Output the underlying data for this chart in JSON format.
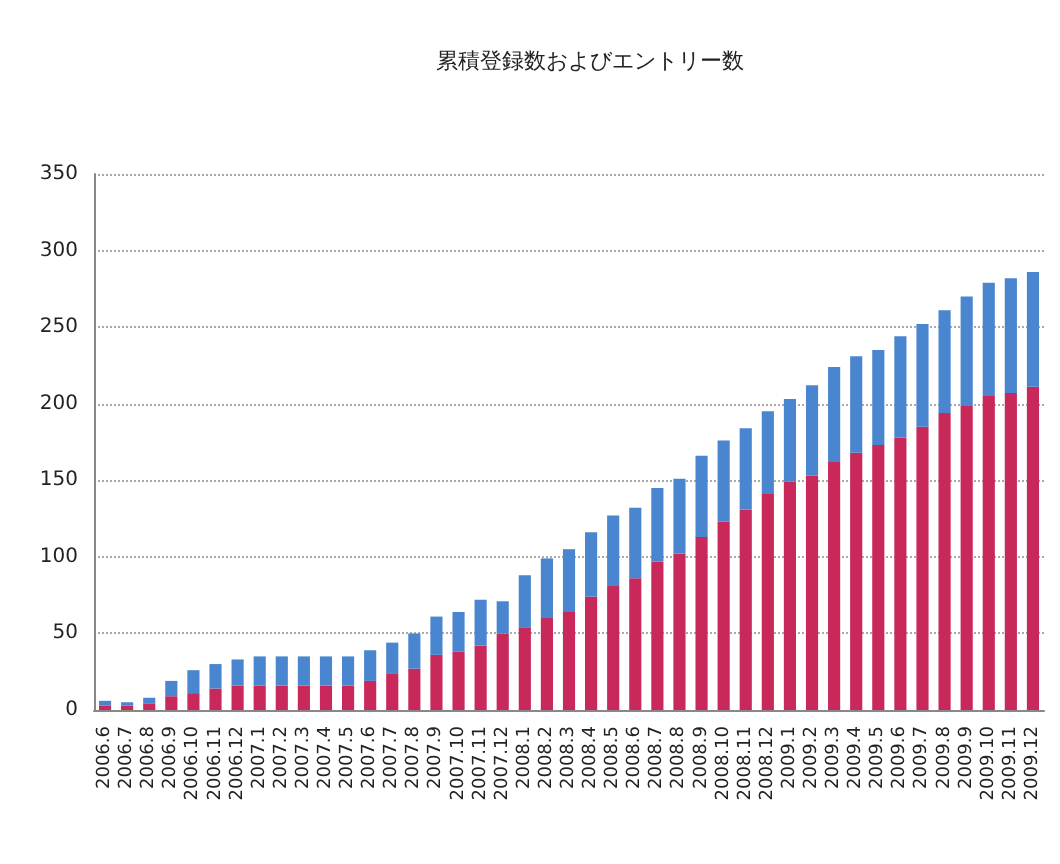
{
  "chart_data": {
    "type": "bar",
    "title": "累積登録数およびエントリー数",
    "stacked": true,
    "categories": [
      "2006.6",
      "2006.7",
      "2006.8",
      "2006.9",
      "2006.10",
      "2006.11",
      "2006.12",
      "2007.1",
      "2007.2",
      "2007.3",
      "2007.4",
      "2007.5",
      "2007.6",
      "2007.7",
      "2007.8",
      "2007.9",
      "2007.10",
      "2007.11",
      "2007.12",
      "2008.1",
      "2008.2",
      "2008.3",
      "2008.4",
      "2008.5",
      "2008.6",
      "2008.7",
      "2008.8",
      "2008.9",
      "2008.10",
      "2008.11",
      "2008.12",
      "2009.1",
      "2009.2",
      "2009.3",
      "2009.4",
      "2009.5",
      "2009.6",
      "2009.7",
      "2009.8",
      "2009.9",
      "2009.10",
      "2009.11",
      "2009.12"
    ],
    "series": [
      {
        "color": "#c8285a",
        "values": [
          3,
          3,
          4,
          9,
          11,
          14,
          16,
          16,
          16,
          16,
          16,
          16,
          19,
          24,
          27,
          36,
          38,
          42,
          50,
          54,
          60,
          64,
          74,
          81,
          86,
          97,
          102,
          113,
          123,
          131,
          141,
          149,
          153,
          162,
          168,
          173,
          178,
          185,
          194,
          199,
          205,
          207,
          211
        ]
      },
      {
        "color": "#4a86d0",
        "values": [
          3,
          2,
          4,
          10,
          15,
          16,
          17,
          19,
          19,
          19,
          19,
          19,
          20,
          20,
          23,
          25,
          26,
          30,
          21,
          34,
          39,
          41,
          42,
          46,
          46,
          48,
          49,
          53,
          53,
          53,
          54,
          54,
          59,
          62,
          63,
          62,
          66,
          67,
          67,
          71,
          74,
          75,
          75
        ]
      }
    ],
    "ylim": [
      0,
      350
    ],
    "yticks": [
      0,
      50,
      100,
      150,
      200,
      250,
      300,
      350
    ],
    "grid": "y"
  }
}
